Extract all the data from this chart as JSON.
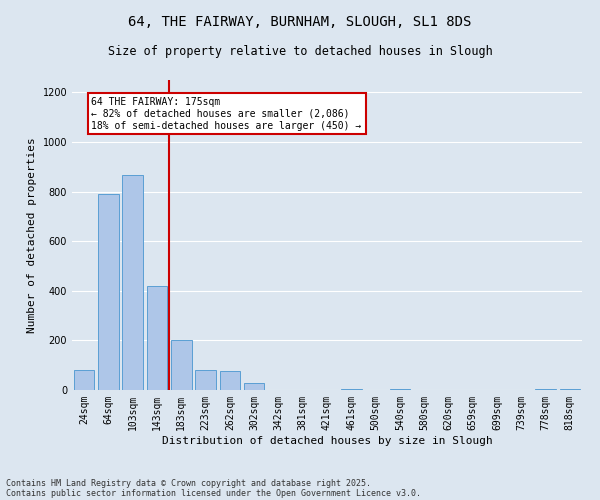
{
  "title1": "64, THE FAIRWAY, BURNHAM, SLOUGH, SL1 8DS",
  "title2": "Size of property relative to detached houses in Slough",
  "xlabel": "Distribution of detached houses by size in Slough",
  "ylabel": "Number of detached properties",
  "categories": [
    "24sqm",
    "64sqm",
    "103sqm",
    "143sqm",
    "183sqm",
    "223sqm",
    "262sqm",
    "302sqm",
    "342sqm",
    "381sqm",
    "421sqm",
    "461sqm",
    "500sqm",
    "540sqm",
    "580sqm",
    "620sqm",
    "659sqm",
    "699sqm",
    "739sqm",
    "778sqm",
    "818sqm"
  ],
  "values": [
    80,
    790,
    865,
    420,
    200,
    80,
    75,
    30,
    0,
    0,
    0,
    5,
    0,
    5,
    0,
    0,
    0,
    0,
    0,
    5,
    5
  ],
  "bar_color": "#aec6e8",
  "bar_edge_color": "#5a9fd4",
  "grid_color": "#ffffff",
  "bg_color": "#dce6f0",
  "annotation_text": "64 THE FAIRWAY: 175sqm\n← 82% of detached houses are smaller (2,086)\n18% of semi-detached houses are larger (450) →",
  "vline_x_index": 3.5,
  "vline_color": "#cc0000",
  "annotation_box_color": "#cc0000",
  "ylim": [
    0,
    1250
  ],
  "yticks": [
    0,
    200,
    400,
    600,
    800,
    1000,
    1200
  ],
  "footer1": "Contains HM Land Registry data © Crown copyright and database right 2025.",
  "footer2": "Contains public sector information licensed under the Open Government Licence v3.0.",
  "title_fontsize": 10,
  "subtitle_fontsize": 8.5,
  "axis_fontsize": 8,
  "tick_fontsize": 7,
  "annot_fontsize": 7,
  "footer_fontsize": 6
}
